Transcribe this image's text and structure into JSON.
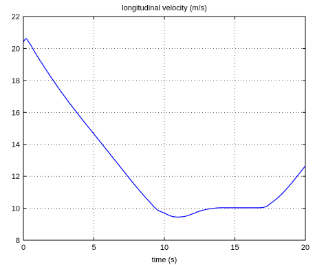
{
  "chart_data": {
    "type": "line",
    "title": "longitudinal velocity (m/s)",
    "xlabel": "time (s)",
    "ylabel": "",
    "xlim": [
      0,
      20
    ],
    "ylim": [
      8,
      22
    ],
    "xticks": [
      0,
      5,
      10,
      15,
      20
    ],
    "yticks": [
      8,
      10,
      12,
      14,
      16,
      18,
      20,
      22
    ],
    "grid": true,
    "series": [
      {
        "color": "#0000ff",
        "x": [
          0,
          0.1,
          0.2,
          0.3,
          0.5,
          1,
          2,
          3,
          4,
          5,
          6,
          7,
          8,
          9,
          9.5,
          10,
          10.3,
          10.6,
          11,
          11.5,
          12,
          12.5,
          13,
          13.5,
          14,
          14.5,
          15,
          15.5,
          16,
          16.5,
          17,
          17.3,
          17.6,
          18,
          18.5,
          19,
          19.5,
          20
        ],
        "y": [
          20.4,
          20.55,
          20.62,
          20.5,
          20.25,
          19.5,
          18.15,
          16.9,
          15.75,
          14.65,
          13.55,
          12.45,
          11.35,
          10.35,
          9.9,
          9.7,
          9.57,
          9.48,
          9.45,
          9.5,
          9.65,
          9.82,
          9.93,
          10.0,
          10.03,
          10.03,
          10.03,
          10.03,
          10.03,
          10.03,
          10.05,
          10.15,
          10.35,
          10.62,
          11.05,
          11.55,
          12.1,
          12.65
        ]
      }
    ]
  }
}
